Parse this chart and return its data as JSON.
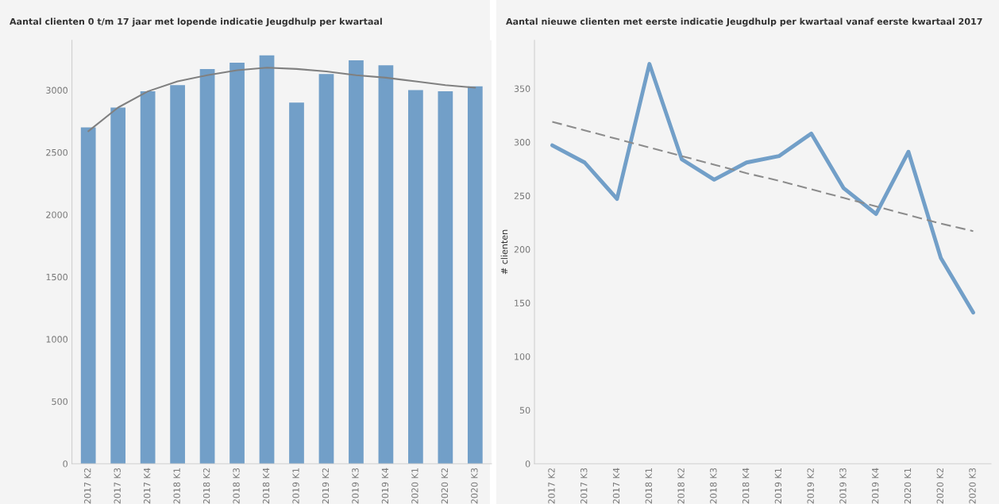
{
  "chart_data": [
    {
      "type": "bar",
      "title": "Aantal clienten 0 t/m 17 jaar met lopende indicatie Jeugdhulp per kwartaal",
      "categories": [
        "2017 K2",
        "2017 K3",
        "2017 K4",
        "2018 K1",
        "2018 K2",
        "2018 K3",
        "2018 K4",
        "2019 K1",
        "2019 K2",
        "2019 K3",
        "2019 K4",
        "2020 K1",
        "2020 K2",
        "2020 K3"
      ],
      "series": [
        {
          "color": "#729fc8",
          "values": [
            2700,
            2860,
            2990,
            3040,
            3170,
            3220,
            3280,
            2900,
            3130,
            3240,
            3200,
            3000,
            2990,
            3030
          ]
        },
        {
          "type": "line",
          "color": "#808080",
          "line_style": "solid",
          "values": [
            2670,
            2860,
            2990,
            3070,
            3120,
            3160,
            3180,
            3170,
            3150,
            3120,
            3100,
            3070,
            3040,
            3020
          ]
        }
      ],
      "ylim": [
        0,
        3400
      ],
      "yticks": [
        0,
        500,
        1000,
        1500,
        2000,
        2500,
        3000
      ],
      "grid": false
    },
    {
      "type": "line",
      "title": "Aantal nieuwe clienten met eerste indicatie Jeugdhulp per kwartaal vanaf eerste kwartaal 2017",
      "ylabel": "# clienten",
      "categories": [
        "2017 K2",
        "2017 K3",
        "2017 K4",
        "2018 K1",
        "2018 K2",
        "2018 K3",
        "2018 K4",
        "2019 K1",
        "2019 K2",
        "2019 K3",
        "2019 K4",
        "2020 K1",
        "2020 K2",
        "2020 K3"
      ],
      "series": [
        {
          "color": "#729fc8",
          "line_style": "solid",
          "values": [
            297,
            281,
            247,
            373,
            284,
            265,
            281,
            287,
            308,
            257,
            233,
            291,
            192,
            141
          ]
        },
        {
          "type": "line",
          "color": "#8c8c8c",
          "line_style": "dashed",
          "values": [
            319,
            311,
            303,
            295,
            287,
            279,
            271,
            264,
            256,
            248,
            240,
            232,
            224,
            217
          ]
        }
      ],
      "ylim": [
        0,
        395
      ],
      "yticks": [
        0,
        50,
        100,
        150,
        200,
        250,
        300,
        350
      ],
      "grid": false
    }
  ]
}
